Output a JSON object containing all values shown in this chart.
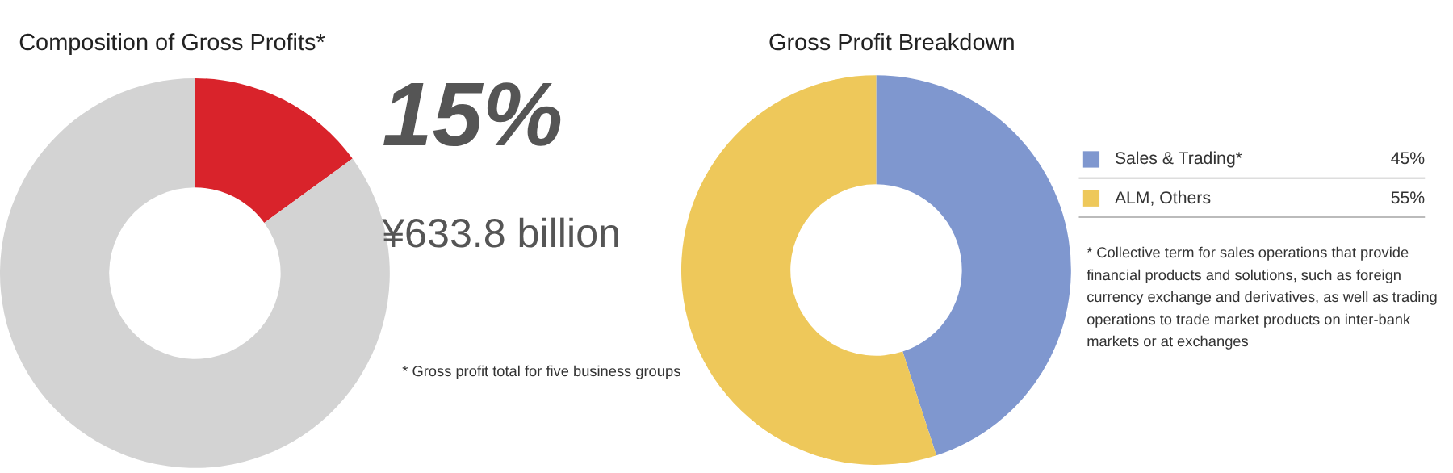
{
  "chart_data": [
    {
      "type": "donut",
      "title": "Composition of Gross Profits*",
      "categories": [
        null,
        null
      ],
      "values": [
        15,
        85
      ],
      "colors": [
        "#d9232b",
        "#d3d3d3"
      ],
      "value_labels": [
        "15%",
        null
      ],
      "annotations": [
        "¥633.8 billion",
        "* Gross profit total for five business groups"
      ]
    },
    {
      "type": "donut",
      "title": "Gross Profit Breakdown",
      "categories": [
        "Sales & Trading*",
        "ALM, Others"
      ],
      "values": [
        45,
        55
      ],
      "colors": [
        "#7f97cf",
        "#eec85a"
      ],
      "value_labels": [
        "45%",
        "55%"
      ],
      "legend": "right",
      "annotations": [
        "* Collective term for sales operations that provide financial products and solutions, such as foreign currency exchange and derivatives, as well as trading operations to trade market products on inter-bank markets or at exchanges"
      ]
    }
  ]
}
